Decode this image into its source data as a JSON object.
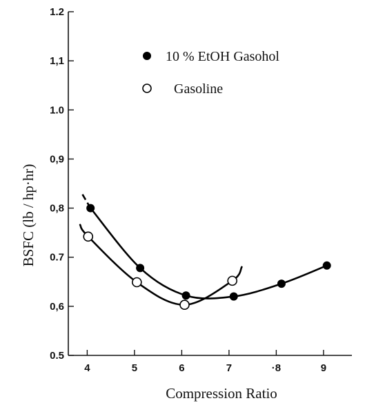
{
  "chart_data": {
    "type": "line",
    "title": "",
    "xlabel": "Compression Ratio",
    "ylabel": "BSFC (lb / hp·hr)",
    "xlim": [
      3.6,
      9.6
    ],
    "ylim": [
      0.5,
      1.2
    ],
    "x_ticks": [
      4,
      5,
      6,
      7,
      8,
      9
    ],
    "x_tick_labels": [
      "4",
      "5",
      "6",
      "7",
      "·8",
      "9"
    ],
    "y_ticks": [
      0.5,
      0.6,
      0.7,
      0.8,
      0.9,
      1.0,
      1.1,
      1.2
    ],
    "y_tick_labels": [
      "0.5",
      "0,6",
      "0.7",
      "0,8",
      "0,9",
      "1.0",
      "1,1",
      "1.2"
    ],
    "grid": false,
    "legend_position": "top-center",
    "series": [
      {
        "name": "10 % EtOH Gasohol",
        "marker": "filled-circle",
        "color": "#000000",
        "x": [
          4.07,
          5.12,
          6.09,
          7.1,
          8.11,
          9.07
        ],
        "y": [
          0.8,
          0.678,
          0.622,
          0.62,
          0.646,
          0.683
        ],
        "curve_extends_to": [
          3.9,
          0.828
        ],
        "curve_extension_dashed": true
      },
      {
        "name": "Gasoline",
        "marker": "open-circle",
        "color": "#000000",
        "x": [
          4.02,
          5.05,
          6.06,
          7.07
        ],
        "y": [
          0.742,
          0.649,
          0.603,
          0.652
        ],
        "curve_extends_from": [
          3.85,
          0.766
        ],
        "curve_extends_to": [
          7.27,
          0.68
        ]
      }
    ]
  }
}
